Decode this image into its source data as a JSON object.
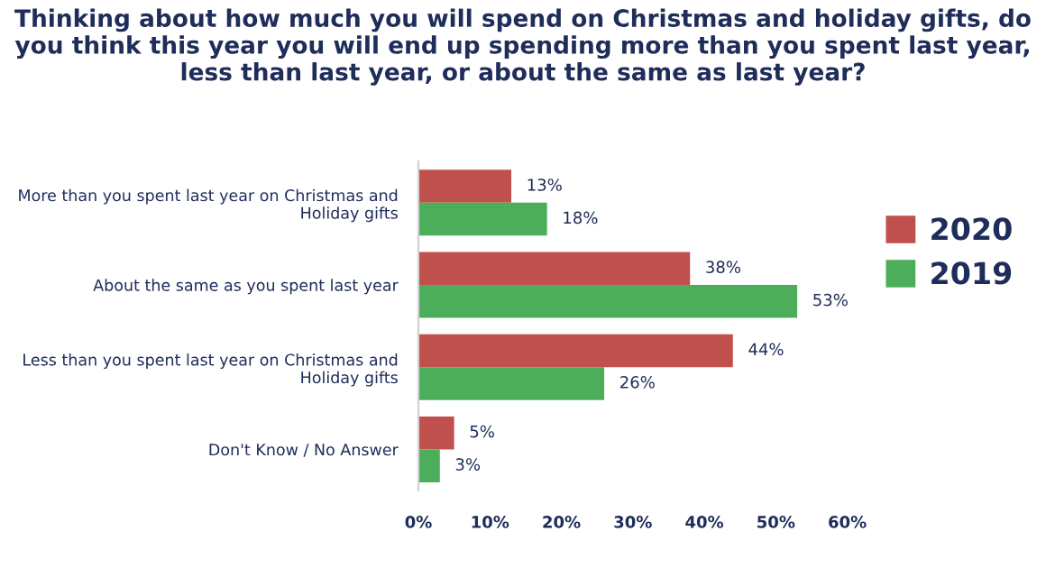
{
  "chart_data": {
    "type": "bar",
    "orientation": "horizontal",
    "title": "Thinking about how much you will spend on Christmas and holiday gifts, do you think this year you will end up spending more than you spent last year, less than last year, or about the same as last year?",
    "categories": [
      "More than you spent last year on Christmas and Holiday gifts",
      "About the same as you spent last year",
      "Less than you spent last year on Christmas and Holiday gifts",
      "Don't Know / No Answer"
    ],
    "series": [
      {
        "name": "2020",
        "color": "#c0504d",
        "values": [
          13,
          38,
          44,
          5
        ],
        "value_labels": [
          "13%",
          "38%",
          "44%",
          "5%"
        ]
      },
      {
        "name": "2019",
        "color": "#4cad5a",
        "values": [
          18,
          53,
          26,
          3
        ],
        "value_labels": [
          "18%",
          "53%",
          "26%",
          "3%"
        ]
      }
    ],
    "xlim": [
      0,
      60
    ],
    "xticks": [
      {
        "value": 0,
        "label": "0%"
      },
      {
        "value": 10,
        "label": "10%"
      },
      {
        "value": 20,
        "label": "20%"
      },
      {
        "value": 30,
        "label": "30%"
      },
      {
        "value": 40,
        "label": "40%"
      },
      {
        "value": 50,
        "label": "50%"
      },
      {
        "value": 60,
        "label": "60%"
      }
    ],
    "grid": false,
    "legend": "right"
  }
}
